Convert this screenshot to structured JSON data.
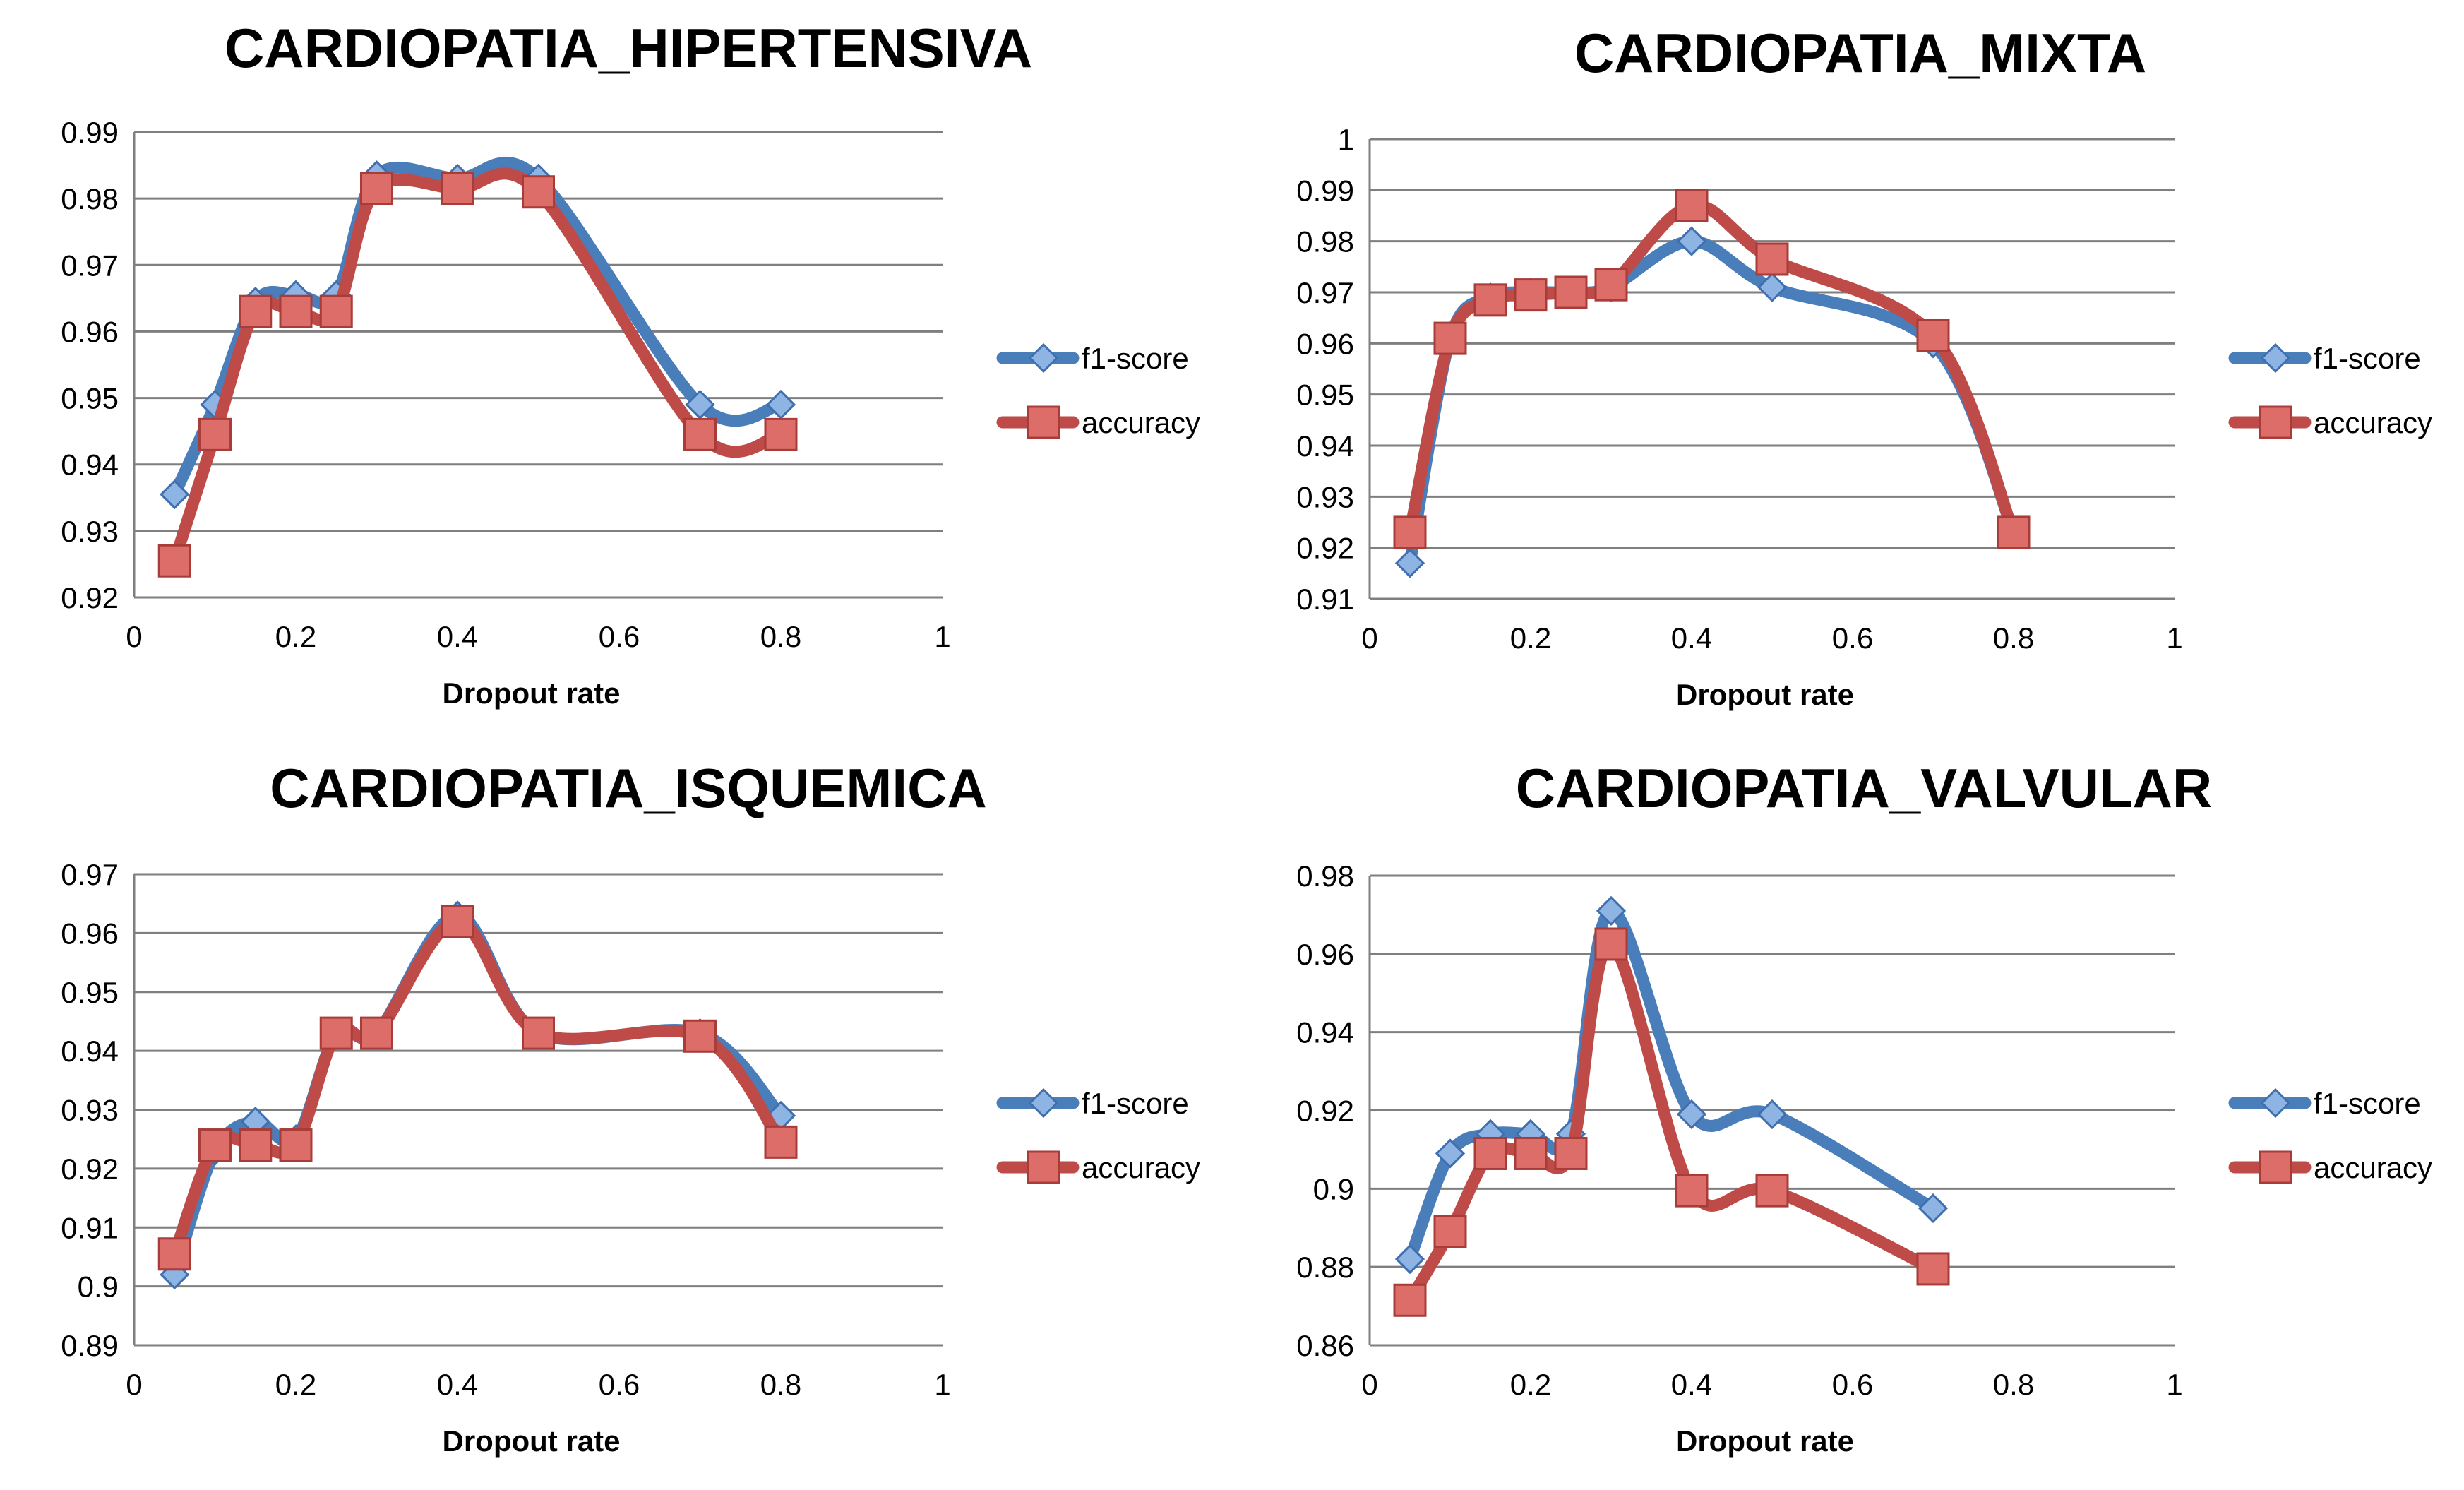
{
  "chart_data": [
    {
      "type": "line",
      "title": "CARDIOPATIA_HIPERTENSIVA",
      "xlabel": "Dropout rate",
      "ylabel": "",
      "xlim": [
        0,
        1
      ],
      "ylim": [
        0.92,
        0.99
      ],
      "xticks": [
        0,
        0.2,
        0.4,
        0.6,
        0.8,
        1
      ],
      "yticks": [
        0.92,
        0.93,
        0.94,
        0.95,
        0.96,
        0.97,
        0.98,
        0.99
      ],
      "x_tick_labels": [
        "0",
        "0.2",
        "0.4",
        "0.6",
        "0.8",
        "1"
      ],
      "y_tick_labels": [
        "0.92",
        "0.93",
        "0.94",
        "0.95",
        "0.96",
        "0.97",
        "0.98",
        "0.99"
      ],
      "grid": true,
      "legend": "right",
      "series": [
        {
          "name": "f1-score",
          "color": "#4a7ebb",
          "marker": "diamond",
          "x": [
            0.05,
            0.1,
            0.15,
            0.2,
            0.25,
            0.3,
            0.4,
            0.5,
            0.7,
            0.8
          ],
          "y": [
            0.9355,
            0.949,
            0.9645,
            0.9655,
            0.9655,
            0.9835,
            0.983,
            0.983,
            0.949,
            0.949
          ]
        },
        {
          "name": "accuracy",
          "color": "#be4b48",
          "marker": "square",
          "x": [
            0.05,
            0.1,
            0.15,
            0.2,
            0.25,
            0.3,
            0.4,
            0.5,
            0.7,
            0.8
          ],
          "y": [
            0.9255,
            0.9445,
            0.963,
            0.963,
            0.963,
            0.9815,
            0.9815,
            0.981,
            0.9445,
            0.9445
          ]
        }
      ]
    },
    {
      "type": "line",
      "title": "CARDIOPATIA_MIXTA",
      "xlabel": "Dropout rate",
      "ylabel": "",
      "xlim": [
        0,
        1
      ],
      "ylim": [
        0.91,
        1
      ],
      "xticks": [
        0,
        0.2,
        0.4,
        0.6,
        0.8,
        1
      ],
      "yticks": [
        0.91,
        0.92,
        0.93,
        0.94,
        0.95,
        0.96,
        0.97,
        0.98,
        0.99,
        1
      ],
      "x_tick_labels": [
        "0",
        "0.2",
        "0.4",
        "0.6",
        "0.8",
        "1"
      ],
      "y_tick_labels": [
        "0.91",
        "0.92",
        "0.93",
        "0.94",
        "0.95",
        "0.96",
        "0.97",
        "0.98",
        "0.99",
        "1"
      ],
      "grid": true,
      "legend": "right",
      "series": [
        {
          "name": "f1-score",
          "color": "#4a7ebb",
          "marker": "diamond",
          "x": [
            0.05,
            0.1,
            0.15,
            0.2,
            0.25,
            0.3,
            0.4,
            0.5,
            0.7,
            0.8
          ],
          "y": [
            0.917,
            0.961,
            0.969,
            0.97,
            0.97,
            0.971,
            0.98,
            0.971,
            0.96,
            0.923
          ]
        },
        {
          "name": "accuracy",
          "color": "#be4b48",
          "marker": "square",
          "x": [
            0.05,
            0.1,
            0.15,
            0.2,
            0.25,
            0.3,
            0.4,
            0.5,
            0.7,
            0.8
          ],
          "y": [
            0.923,
            0.961,
            0.9685,
            0.9695,
            0.97,
            0.9715,
            0.987,
            0.9765,
            0.9615,
            0.923
          ]
        }
      ]
    },
    {
      "type": "line",
      "title": "CARDIOPATIA_ISQUEMICA",
      "xlabel": "Dropout rate",
      "ylabel": "",
      "xlim": [
        0,
        1
      ],
      "ylim": [
        0.89,
        0.97
      ],
      "xticks": [
        0,
        0.2,
        0.4,
        0.6,
        0.8,
        1
      ],
      "yticks": [
        0.89,
        0.9,
        0.91,
        0.92,
        0.93,
        0.94,
        0.95,
        0.96,
        0.97
      ],
      "x_tick_labels": [
        "0",
        "0.2",
        "0.4",
        "0.6",
        "0.8",
        "1"
      ],
      "y_tick_labels": [
        "0.89",
        "0.9",
        "0.91",
        "0.92",
        "0.93",
        "0.94",
        "0.95",
        "0.96",
        "0.97"
      ],
      "grid": true,
      "legend": "right",
      "series": [
        {
          "name": "f1-score",
          "color": "#4a7ebb",
          "marker": "diamond",
          "x": [
            0.05,
            0.1,
            0.15,
            0.2,
            0.25,
            0.3,
            0.4,
            0.5,
            0.7,
            0.8
          ],
          "y": [
            0.902,
            0.923,
            0.928,
            0.925,
            0.943,
            0.943,
            0.963,
            0.943,
            0.943,
            0.929
          ]
        },
        {
          "name": "accuracy",
          "color": "#be4b48",
          "marker": "square",
          "x": [
            0.05,
            0.1,
            0.15,
            0.2,
            0.25,
            0.3,
            0.4,
            0.5,
            0.7,
            0.8
          ],
          "y": [
            0.9055,
            0.924,
            0.924,
            0.924,
            0.943,
            0.943,
            0.962,
            0.943,
            0.9425,
            0.9245
          ]
        }
      ]
    },
    {
      "type": "line",
      "title": "CARDIOPATIA_VALVULAR",
      "xlabel": "Dropout rate",
      "ylabel": "",
      "xlim": [
        0,
        1
      ],
      "ylim": [
        0.86,
        0.98
      ],
      "xticks": [
        0,
        0.2,
        0.4,
        0.6,
        0.8,
        1
      ],
      "yticks": [
        0.86,
        0.88,
        0.9,
        0.92,
        0.94,
        0.96,
        0.98
      ],
      "x_tick_labels": [
        "0",
        "0.2",
        "0.4",
        "0.6",
        "0.8",
        "1"
      ],
      "y_tick_labels": [
        "0.86",
        "0.88",
        "0.9",
        "0.92",
        "0.94",
        "0.96",
        "0.98"
      ],
      "grid": true,
      "legend": "right",
      "series": [
        {
          "name": "f1-score",
          "color": "#4a7ebb",
          "marker": "diamond",
          "x": [
            0.05,
            0.1,
            0.15,
            0.2,
            0.25,
            0.3,
            0.4,
            0.5,
            0.7
          ],
          "y": [
            0.882,
            0.909,
            0.914,
            0.914,
            0.914,
            0.971,
            0.919,
            0.919,
            0.895
          ]
        },
        {
          "name": "accuracy",
          "color": "#be4b48",
          "marker": "square",
          "x": [
            0.05,
            0.1,
            0.15,
            0.2,
            0.25,
            0.3,
            0.4,
            0.5,
            0.7
          ],
          "y": [
            0.8715,
            0.889,
            0.909,
            0.909,
            0.909,
            0.9625,
            0.8995,
            0.8995,
            0.8795
          ]
        }
      ]
    }
  ]
}
